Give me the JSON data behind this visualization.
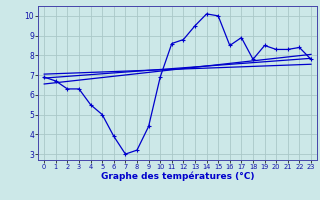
{
  "temp_x": [
    0,
    1,
    2,
    3,
    4,
    5,
    6,
    7,
    8,
    9,
    10,
    11,
    12,
    13,
    14,
    15,
    16,
    17,
    18,
    19,
    20,
    21,
    22,
    23
  ],
  "temp_y": [
    6.9,
    6.7,
    6.3,
    6.3,
    5.5,
    5.0,
    3.9,
    3.0,
    3.2,
    4.4,
    6.9,
    8.6,
    8.8,
    9.5,
    10.1,
    10.0,
    8.5,
    8.9,
    7.8,
    8.5,
    8.3,
    8.3,
    8.4,
    7.8
  ],
  "line1_x": [
    0,
    23
  ],
  "line1_y": [
    6.85,
    7.85
  ],
  "line2_x": [
    0,
    23
  ],
  "line2_y": [
    6.55,
    8.05
  ],
  "line3_x": [
    0,
    23
  ],
  "line3_y": [
    7.05,
    7.55
  ],
  "bg_color": "#cce8e8",
  "grid_color": "#aac8c8",
  "line_color": "#0000cc",
  "xlabel": "Graphe des températures (°C)",
  "xlabel_fontsize": 6.5,
  "yticks": [
    3,
    4,
    5,
    6,
    7,
    8,
    9,
    10
  ],
  "xticks": [
    0,
    1,
    2,
    3,
    4,
    5,
    6,
    7,
    8,
    9,
    10,
    11,
    12,
    13,
    14,
    15,
    16,
    17,
    18,
    19,
    20,
    21,
    22,
    23
  ],
  "ylim": [
    2.7,
    10.5
  ],
  "xlim": [
    -0.5,
    23.5
  ]
}
